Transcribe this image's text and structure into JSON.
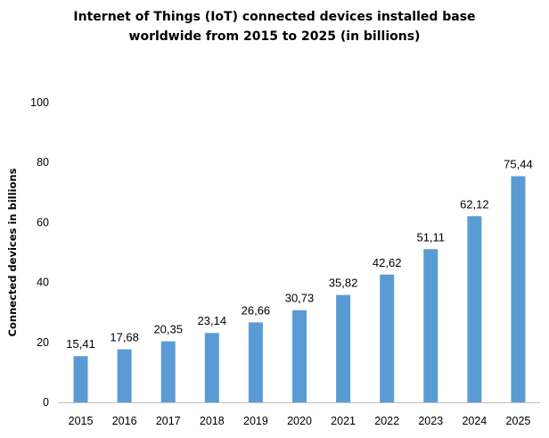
{
  "chart_data": {
    "type": "bar",
    "title_lines": [
      "Internet of Things (IoT) connected devices installed base",
      "worldwide from 2015  to 2025  (in billions)"
    ],
    "xlabel": "",
    "ylabel": "Connected devices in billions",
    "categories": [
      "2015",
      "2016",
      "2017",
      "2018",
      "2019",
      "2020",
      "2021",
      "2022",
      "2023",
      "2024",
      "2025"
    ],
    "values": [
      15.41,
      17.68,
      20.35,
      23.14,
      26.66,
      30.73,
      35.82,
      42.62,
      51.11,
      62.12,
      75.44
    ],
    "value_labels": [
      "15,41",
      "17,68",
      "20,35",
      "23,14",
      "26,66",
      "30,73",
      "35,82",
      "42,62",
      "51,11",
      "62,12",
      "75,44"
    ],
    "ylim": [
      0,
      100
    ],
    "yticks": [
      "0",
      "20",
      "40",
      "60",
      "80",
      "100"
    ],
    "grid": false,
    "legend": "none",
    "bar_color": "#5b9bd5"
  }
}
